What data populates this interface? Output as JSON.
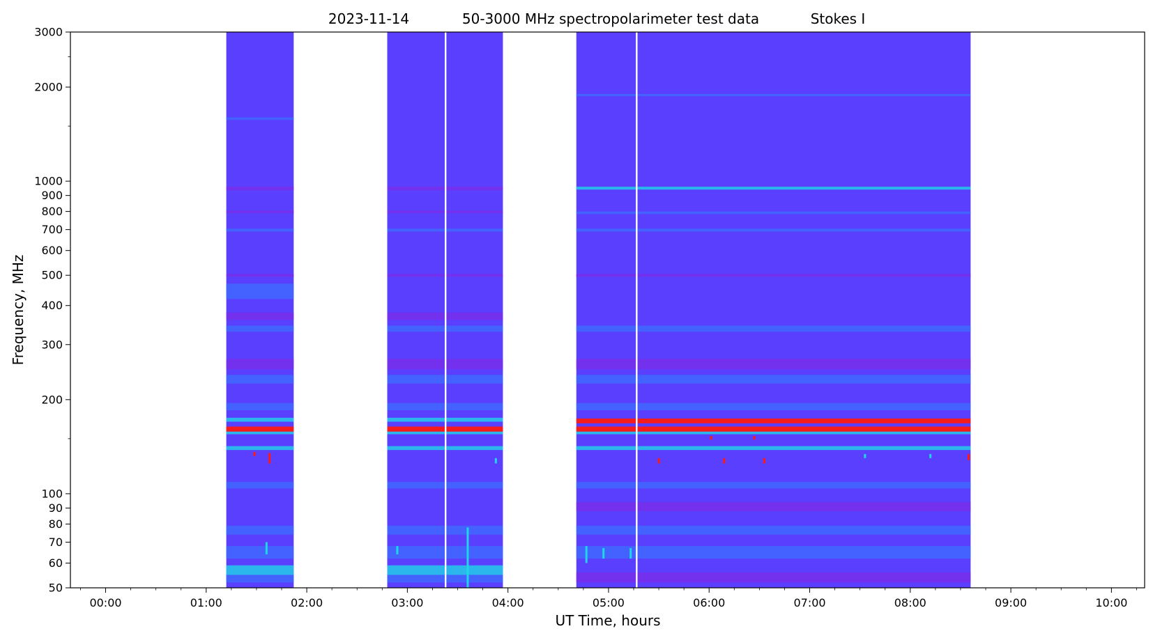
{
  "chart_data": {
    "type": "heatmap",
    "title": {
      "date": "2023-11-14",
      "description": "50-3000 MHz spectropolarimeter test data",
      "parameter": "Stokes I"
    },
    "xlabel": "UT Time, hours",
    "ylabel": "Frequency, MHz",
    "x_scale": "linear",
    "y_scale": "log",
    "xlim_hours": [
      -0.35,
      10.33
    ],
    "ylim_mhz": [
      50,
      3000
    ],
    "x_ticks": [
      {
        "value": 0,
        "label": "00:00"
      },
      {
        "value": 1,
        "label": "01:00"
      },
      {
        "value": 2,
        "label": "02:00"
      },
      {
        "value": 3,
        "label": "03:00"
      },
      {
        "value": 4,
        "label": "04:00"
      },
      {
        "value": 5,
        "label": "05:00"
      },
      {
        "value": 6,
        "label": "06:00"
      },
      {
        "value": 7,
        "label": "07:00"
      },
      {
        "value": 8,
        "label": "08:00"
      },
      {
        "value": 9,
        "label": "09:00"
      },
      {
        "value": 10,
        "label": "10:00"
      }
    ],
    "x_minor_step_hours": 0.25,
    "y_major_ticks": [
      {
        "value": 50,
        "label": "50"
      },
      {
        "value": 60,
        "label": "60"
      },
      {
        "value": 70,
        "label": "70"
      },
      {
        "value": 80,
        "label": "80"
      },
      {
        "value": 90,
        "label": "90"
      },
      {
        "value": 100,
        "label": "100"
      },
      {
        "value": 200,
        "label": "200"
      },
      {
        "value": 300,
        "label": "300"
      },
      {
        "value": 400,
        "label": "400"
      },
      {
        "value": 500,
        "label": "500"
      },
      {
        "value": 600,
        "label": "600"
      },
      {
        "value": 700,
        "label": "700"
      },
      {
        "value": 800,
        "label": "800"
      },
      {
        "value": 900,
        "label": "900"
      },
      {
        "value": 1000,
        "label": "1000"
      },
      {
        "value": 2000,
        "label": "2000"
      },
      {
        "value": 3000,
        "label": "3000"
      }
    ],
    "y_minor_ticks": [
      150,
      1500,
      2500
    ],
    "grid": false,
    "colormap": "rainbow",
    "colors": {
      "background": "#5a3fff",
      "band_purple": "#7a2ee8",
      "band_blue": "#3d6bff",
      "band_cyan": "#1fd6e6",
      "band_red": "#ff1a10",
      "gap": "#ffffff"
    },
    "observation_segments": [
      {
        "start": 1.2,
        "end": 1.87
      },
      {
        "start": 2.8,
        "end": 3.95
      },
      {
        "start": 4.68,
        "end": 8.6
      }
    ],
    "data_gaps": [
      {
        "time": 3.38
      },
      {
        "time": 5.28
      }
    ],
    "frequency_bands": [
      {
        "low": 1870,
        "high": 1900,
        "level": "blue",
        "segments": [
          2
        ]
      },
      {
        "low": 1570,
        "high": 1600,
        "level": "blue",
        "segments": [
          0
        ]
      },
      {
        "low": 935,
        "high": 960,
        "level": "purple",
        "segments": [
          0,
          1
        ]
      },
      {
        "low": 940,
        "high": 960,
        "level": "cyan",
        "segments": [
          2
        ]
      },
      {
        "low": 790,
        "high": 805,
        "level": "purple",
        "segments": [
          0,
          1
        ]
      },
      {
        "low": 785,
        "high": 800,
        "level": "blue",
        "segments": [
          2
        ]
      },
      {
        "low": 690,
        "high": 705,
        "level": "blue",
        "segments": [
          0,
          1,
          2
        ]
      },
      {
        "low": 495,
        "high": 505,
        "level": "purple",
        "segments": [
          0,
          1,
          2
        ]
      },
      {
        "low": 420,
        "high": 470,
        "level": "blue",
        "segments": [
          0
        ]
      },
      {
        "low": 360,
        "high": 380,
        "level": "purple",
        "segments": [
          0,
          1
        ]
      },
      {
        "low": 330,
        "high": 345,
        "level": "blue",
        "segments": [
          0,
          1,
          2
        ]
      },
      {
        "low": 250,
        "high": 270,
        "level": "purple",
        "segments": [
          0,
          1,
          2
        ]
      },
      {
        "low": 225,
        "high": 240,
        "level": "blue",
        "segments": [
          0,
          1,
          2
        ]
      },
      {
        "low": 185,
        "high": 195,
        "level": "blue",
        "segments": [
          0,
          1,
          2
        ]
      },
      {
        "low": 170,
        "high": 175,
        "level": "cyan",
        "segments": [
          0,
          1
        ]
      },
      {
        "low": 168,
        "high": 174,
        "level": "red",
        "segments": [
          2
        ]
      },
      {
        "low": 158,
        "high": 164,
        "level": "red",
        "segments": [
          0,
          1,
          2
        ]
      },
      {
        "low": 155,
        "high": 158,
        "level": "cyan",
        "segments": [
          0,
          1,
          2
        ]
      },
      {
        "low": 138,
        "high": 142,
        "level": "cyan",
        "segments": [
          0,
          1,
          2
        ]
      },
      {
        "low": 104,
        "high": 109,
        "level": "blue",
        "segments": [
          0,
          1,
          2
        ]
      },
      {
        "low": 88,
        "high": 94,
        "level": "purple",
        "segments": [
          2
        ]
      },
      {
        "low": 74,
        "high": 79,
        "level": "blue",
        "segments": [
          0,
          1,
          2
        ]
      },
      {
        "low": 62,
        "high": 68,
        "level": "blue",
        "segments": [
          0,
          1,
          2
        ]
      },
      {
        "low": 55,
        "high": 59,
        "level": "cyan",
        "segments": [
          0,
          1
        ]
      },
      {
        "low": 52,
        "high": 55,
        "level": "blue",
        "segments": [
          0,
          1
        ]
      },
      {
        "low": 52,
        "high": 56,
        "level": "purple",
        "segments": [
          2
        ]
      }
    ],
    "bursts": [
      {
        "time": 3.6,
        "low": 50,
        "high": 78,
        "level": "cyan"
      },
      {
        "time": 1.6,
        "low": 64,
        "high": 70,
        "level": "cyan"
      },
      {
        "time": 2.9,
        "low": 64,
        "high": 68,
        "level": "cyan"
      },
      {
        "time": 4.78,
        "low": 60,
        "high": 68,
        "level": "cyan"
      },
      {
        "time": 4.95,
        "low": 62,
        "high": 67,
        "level": "cyan"
      },
      {
        "time": 5.22,
        "low": 62,
        "high": 67,
        "level": "cyan"
      },
      {
        "time": 1.63,
        "low": 125,
        "high": 135,
        "level": "red"
      },
      {
        "time": 1.48,
        "low": 132,
        "high": 136,
        "level": "red"
      },
      {
        "time": 3.88,
        "low": 125,
        "high": 130,
        "level": "cyan"
      },
      {
        "time": 5.5,
        "low": 125,
        "high": 130,
        "level": "red"
      },
      {
        "time": 6.15,
        "low": 125,
        "high": 130,
        "level": "red"
      },
      {
        "time": 6.55,
        "low": 125,
        "high": 130,
        "level": "red"
      },
      {
        "time": 6.02,
        "low": 149,
        "high": 153,
        "level": "red"
      },
      {
        "time": 6.45,
        "low": 149,
        "high": 153,
        "level": "red"
      },
      {
        "time": 8.58,
        "low": 128,
        "high": 134,
        "level": "red"
      },
      {
        "time": 8.2,
        "low": 130,
        "high": 134,
        "level": "cyan"
      },
      {
        "time": 7.55,
        "low": 130,
        "high": 134,
        "level": "cyan"
      }
    ]
  }
}
